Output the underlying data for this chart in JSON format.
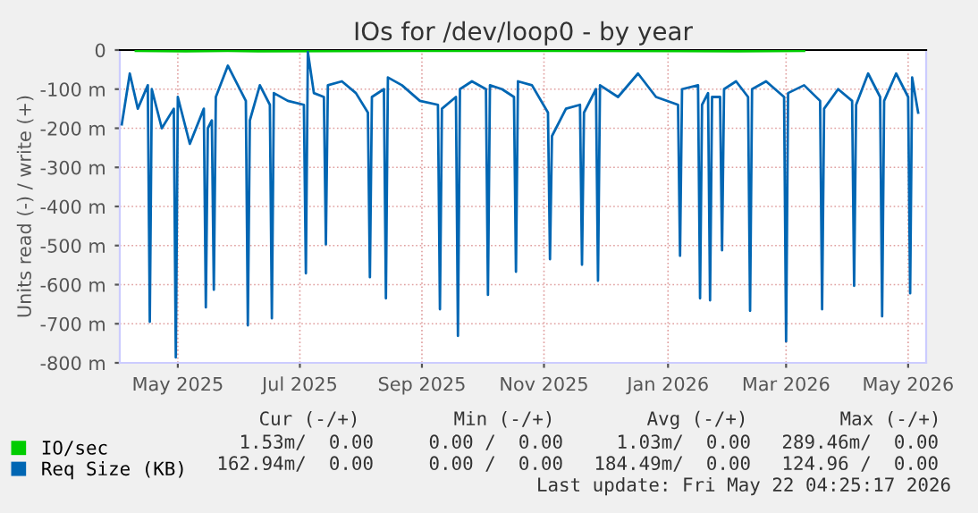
{
  "chart_data": {
    "type": "line",
    "title": "IOs for /dev/loop0 - by year",
    "ylabel": "Units read (-) / write (+)",
    "xlim": [
      "2025-04-17",
      "2026-05-25"
    ],
    "ylim": [
      -800,
      0
    ],
    "xticks": [
      {
        "value": "2025-05-16",
        "label": "May 2025"
      },
      {
        "value": "2025-07-16",
        "label": "Jul 2025"
      },
      {
        "value": "2025-09-15",
        "label": "Sep 2025"
      },
      {
        "value": "2025-11-15",
        "label": "Nov 2025"
      },
      {
        "value": "2026-01-16",
        "label": "Jan 2026"
      },
      {
        "value": "2026-03-16",
        "label": "Mar 2026"
      },
      {
        "value": "2026-05-16",
        "label": "May 2026"
      }
    ],
    "yticks": [
      0,
      {
        "value": -100,
        "label": "-100 m"
      },
      {
        "value": -200,
        "label": "-200 m"
      },
      {
        "value": -300,
        "label": "-300 m"
      },
      {
        "value": -400,
        "label": "-400 m"
      },
      {
        "value": -500,
        "label": "-500 m"
      },
      {
        "value": -600,
        "label": "-600 m"
      },
      {
        "value": -700,
        "label": "-700 m"
      },
      {
        "value": -800,
        "label": "-800 m"
      }
    ],
    "grid": true,
    "legend": "bottom left",
    "series": [
      {
        "name": "IO/sec",
        "color": "#00cc00",
        "x": [
          "2025-04-25",
          "2025-05-20",
          "2025-06-10",
          "2025-06-25",
          "2025-09-10",
          "2025-11-20",
          "2026-02-20",
          "2026-03-25"
        ],
        "values": [
          -2,
          -3,
          -2,
          -3,
          -2,
          -2,
          -3,
          -2
        ]
      },
      {
        "name": "Req Size (KB)",
        "color": "#0066b3",
        "x": [
          "2025-04-18",
          "2025-04-22",
          "2025-04-26",
          "2025-05-01",
          "2025-05-02",
          "2025-05-03",
          "2025-05-08",
          "2025-05-14",
          "2025-05-15",
          "2025-05-16",
          "2025-05-22",
          "2025-05-29",
          "2025-05-30",
          "2025-05-31",
          "2025-06-02",
          "2025-06-03",
          "2025-06-04",
          "2025-06-10",
          "2025-06-19",
          "2025-06-20",
          "2025-06-21",
          "2025-06-26",
          "2025-07-01",
          "2025-07-02",
          "2025-07-03",
          "2025-07-10",
          "2025-07-18",
          "2025-07-19",
          "2025-07-20",
          "2025-07-23",
          "2025-07-28",
          "2025-07-29",
          "2025-07-30",
          "2025-08-06",
          "2025-08-13",
          "2025-08-19",
          "2025-08-20",
          "2025-08-21",
          "2025-08-27",
          "2025-08-28",
          "2025-08-29",
          "2025-09-05",
          "2025-09-14",
          "2025-09-23",
          "2025-09-24",
          "2025-09-25",
          "2025-10-02",
          "2025-10-03",
          "2025-10-04",
          "2025-10-10",
          "2025-10-17",
          "2025-10-18",
          "2025-10-19",
          "2025-10-25",
          "2025-10-31",
          "2025-11-01",
          "2025-11-02",
          "2025-11-09",
          "2025-11-17",
          "2025-11-18",
          "2025-11-19",
          "2025-11-26",
          "2025-12-03",
          "2025-12-04",
          "2025-12-05",
          "2025-12-11",
          "2025-12-12",
          "2025-12-13",
          "2025-12-22",
          "2026-01-01",
          "2026-01-10",
          "2026-01-21",
          "2026-01-22",
          "2026-01-23",
          "2026-01-31",
          "2026-02-01",
          "2026-02-02",
          "2026-02-05",
          "2026-02-06",
          "2026-02-07",
          "2026-02-11",
          "2026-02-12",
          "2026-02-13",
          "2026-02-19",
          "2026-02-25",
          "2026-02-26",
          "2026-02-27",
          "2026-03-06",
          "2026-03-15",
          "2026-03-16",
          "2026-03-17",
          "2026-03-25",
          "2026-04-02",
          "2026-04-03",
          "2026-04-04",
          "2026-04-11",
          "2026-04-18",
          "2026-04-19",
          "2026-04-20",
          "2026-04-26",
          "2026-05-02",
          "2026-05-03",
          "2026-05-04",
          "2026-05-10",
          "2026-05-16",
          "2026-05-17",
          "2026-05-18",
          "2026-05-21"
        ],
        "values": [
          -190,
          -60,
          -150,
          -90,
          -695,
          -100,
          -200,
          -150,
          -786,
          -120,
          -240,
          -150,
          -658,
          -200,
          -180,
          -613,
          -120,
          -40,
          -130,
          -704,
          -180,
          -90,
          -140,
          -686,
          -110,
          -130,
          -140,
          -571,
          -5,
          -110,
          -120,
          -497,
          -90,
          -80,
          -110,
          -160,
          -581,
          -120,
          -100,
          -635,
          -70,
          -90,
          -130,
          -140,
          -663,
          -150,
          -120,
          -731,
          -100,
          -80,
          -100,
          -626,
          -90,
          -100,
          -120,
          -567,
          -80,
          -90,
          -160,
          -535,
          -220,
          -150,
          -140,
          -549,
          -160,
          -100,
          -590,
          -90,
          -120,
          -60,
          -120,
          -140,
          -526,
          -100,
          -90,
          -635,
          -140,
          -110,
          -640,
          -120,
          -120,
          -512,
          -100,
          -80,
          -120,
          -667,
          -100,
          -80,
          -120,
          -745,
          -110,
          -90,
          -130,
          -663,
          -150,
          -100,
          -130,
          -603,
          -140,
          -60,
          -120,
          -681,
          -130,
          -60,
          -120,
          -622,
          -70,
          -160
        ]
      }
    ],
    "annotations": [
      "Cur (-/+)",
      "Min (-/+)",
      "Avg (-/+)",
      "Max (-/+)",
      "1.53m/  0.00",
      "0.00 /  0.00",
      "1.03m/  0.00",
      "289.46m/  0.00",
      "162.94m/  0.00",
      "0.00 /  0.00",
      "184.49m/  0.00",
      "124.96 /  0.00",
      "Last update: Fri May 22 04:25:17 2026"
    ]
  }
}
